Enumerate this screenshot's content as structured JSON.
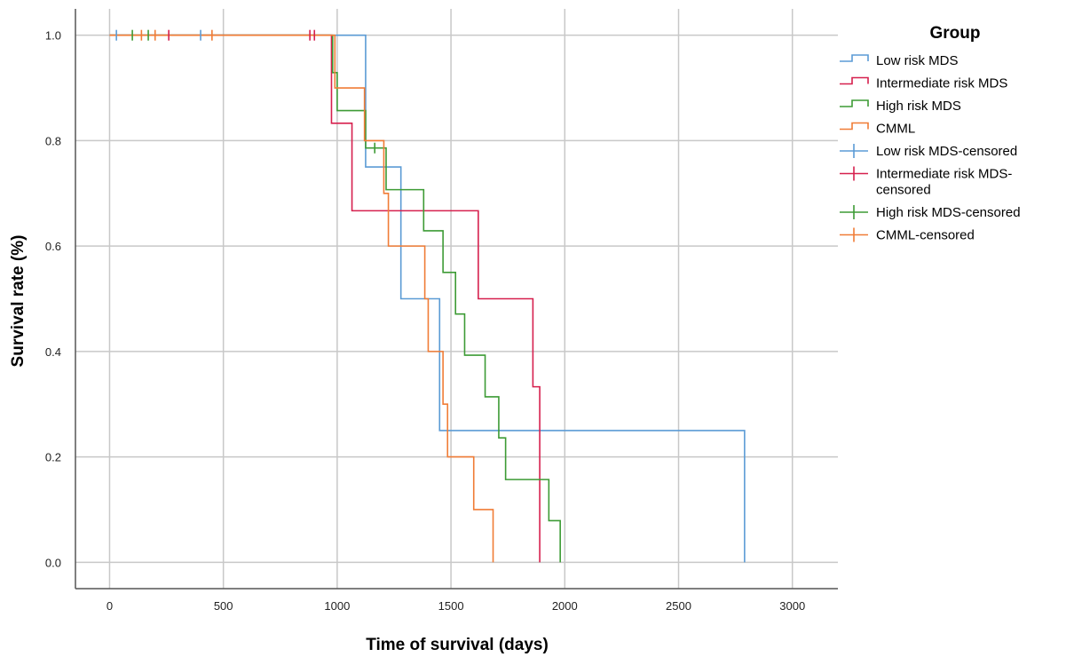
{
  "chart_data": {
    "type": "line",
    "subtype": "kaplan-meier",
    "title": "",
    "xlabel": "Time of survival (days)",
    "ylabel": "Survival rate (%)",
    "xlim": [
      -150,
      3200
    ],
    "ylim": [
      -0.05,
      1.05
    ],
    "x_ticks": [
      0,
      500,
      1000,
      1500,
      2000,
      2500,
      3000
    ],
    "y_ticks": [
      0.0,
      0.2,
      0.4,
      0.6,
      0.8,
      1.0
    ],
    "x_tick_labels": [
      "0",
      "500",
      "1000",
      "1500",
      "2000",
      "2500",
      "3000"
    ],
    "y_tick_labels": [
      "0.0",
      "0.2",
      "0.4",
      "0.6",
      "0.8",
      "1.0"
    ],
    "grid": true,
    "legend": {
      "title": "Group",
      "position": "right",
      "entries": [
        {
          "label": "Low risk MDS",
          "kind": "line",
          "color": "#5b9bd5"
        },
        {
          "label": "Intermediate risk MDS",
          "kind": "line",
          "color": "#d6204e"
        },
        {
          "label": "High risk MDS",
          "kind": "line",
          "color": "#3d9b35"
        },
        {
          "label": "CMML",
          "kind": "line",
          "color": "#f07c36"
        },
        {
          "label": "Low risk MDS-censored",
          "kind": "censor",
          "color": "#5b9bd5"
        },
        {
          "label": "Intermediate risk MDS-censored",
          "kind": "censor",
          "color": "#d6204e"
        },
        {
          "label": "High risk MDS-censored",
          "kind": "censor",
          "color": "#3d9b35"
        },
        {
          "label": "CMML-censored",
          "kind": "censor",
          "color": "#f07c36"
        }
      ]
    },
    "series": [
      {
        "name": "Low risk MDS",
        "color": "#5b9bd5",
        "steps": [
          [
            0,
            1.0
          ],
          [
            1125,
            0.75
          ],
          [
            1280,
            0.5
          ],
          [
            1450,
            0.25
          ],
          [
            2790,
            0.0
          ]
        ],
        "end_x": 2790,
        "censored": [
          [
            30,
            1.0
          ],
          [
            400,
            1.0
          ]
        ]
      },
      {
        "name": "Intermediate risk MDS",
        "color": "#d6204e",
        "steps": [
          [
            0,
            1.0
          ],
          [
            975,
            0.833
          ],
          [
            1065,
            0.667
          ],
          [
            1620,
            0.5
          ],
          [
            1860,
            0.333
          ],
          [
            1890,
            0.0
          ]
        ],
        "end_x": 1890,
        "censored": [
          [
            260,
            1.0
          ],
          [
            880,
            1.0
          ],
          [
            900,
            1.0
          ]
        ]
      },
      {
        "name": "High risk MDS",
        "color": "#3d9b35",
        "steps": [
          [
            0,
            1.0
          ],
          [
            980,
            0.929
          ],
          [
            1000,
            0.857
          ],
          [
            1125,
            0.786
          ],
          [
            1215,
            0.707
          ],
          [
            1380,
            0.629
          ],
          [
            1465,
            0.55
          ],
          [
            1520,
            0.471
          ],
          [
            1560,
            0.393
          ],
          [
            1650,
            0.314
          ],
          [
            1710,
            0.236
          ],
          [
            1740,
            0.157
          ],
          [
            1930,
            0.079
          ],
          [
            1980,
            0.0
          ]
        ],
        "end_x": 1980,
        "censored": [
          [
            100,
            1.0
          ],
          [
            170,
            1.0
          ],
          [
            1165,
            0.786
          ]
        ]
      },
      {
        "name": "CMML",
        "color": "#f07c36",
        "steps": [
          [
            0,
            1.0
          ],
          [
            990,
            0.9
          ],
          [
            1120,
            0.8
          ],
          [
            1205,
            0.7
          ],
          [
            1225,
            0.6
          ],
          [
            1385,
            0.5
          ],
          [
            1400,
            0.4
          ],
          [
            1465,
            0.3
          ],
          [
            1485,
            0.2
          ],
          [
            1600,
            0.1
          ],
          [
            1685,
            0.0
          ]
        ],
        "end_x": 1685,
        "censored": [
          [
            140,
            1.0
          ],
          [
            200,
            1.0
          ],
          [
            450,
            1.0
          ]
        ]
      }
    ]
  }
}
